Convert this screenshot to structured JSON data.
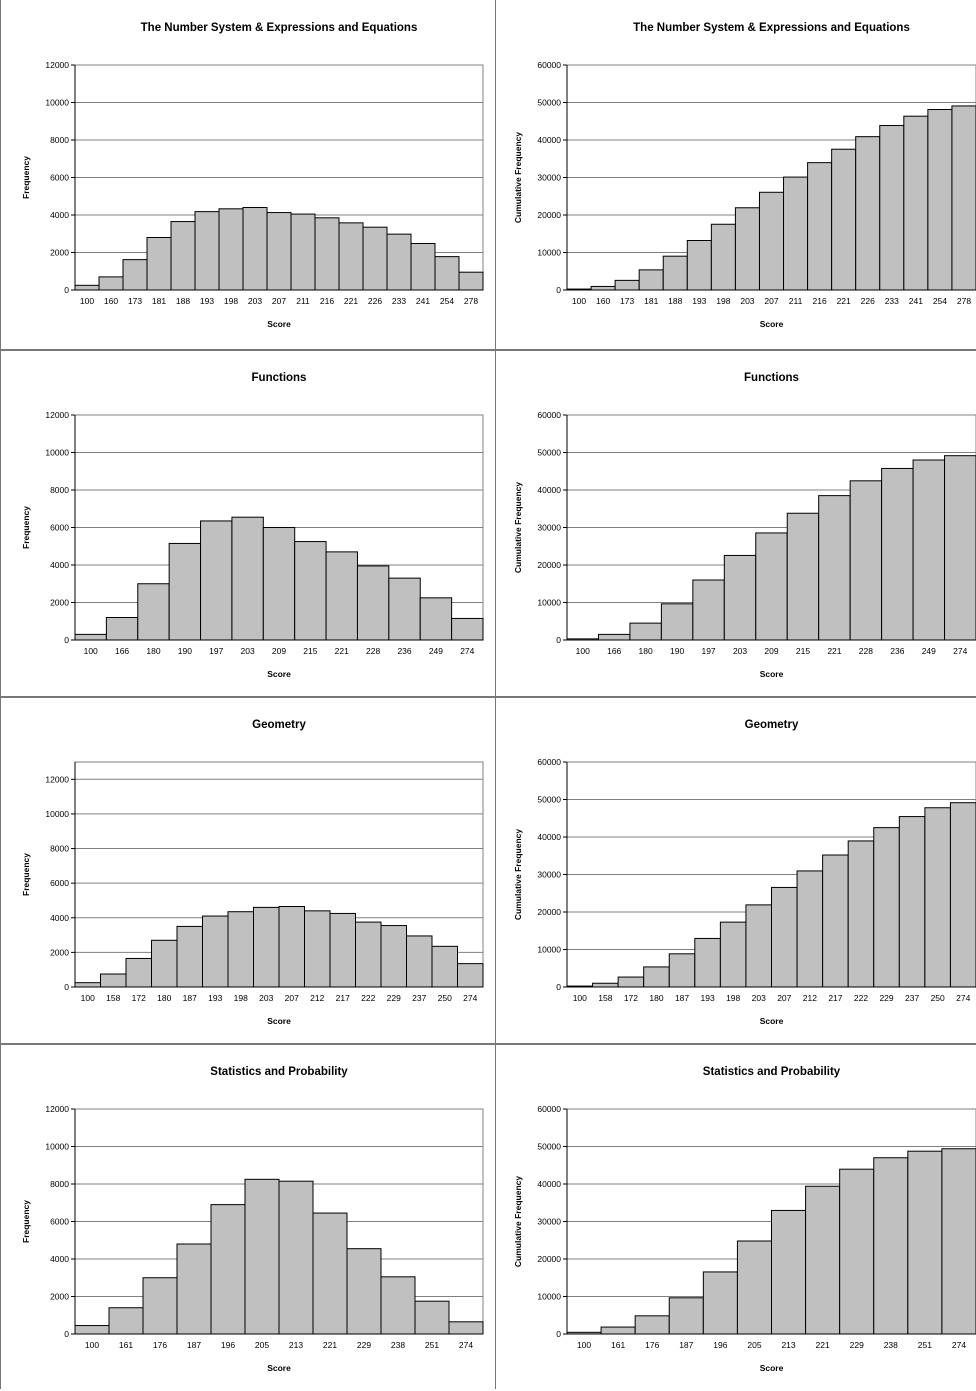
{
  "chart_data": [
    {
      "type": "bar",
      "title": "The Number System & Expressions and Equations",
      "xlabel": "Score",
      "ylabel": "Frequency",
      "ylim": [
        0,
        12000
      ],
      "yticks": [
        0,
        2000,
        4000,
        6000,
        8000,
        10000,
        12000
      ],
      "grid": true,
      "categories": [
        "100",
        "160",
        "173",
        "181",
        "188",
        "193",
        "198",
        "203",
        "207",
        "211",
        "216",
        "221",
        "226",
        "233",
        "241",
        "254",
        "278"
      ],
      "values": [
        250,
        700,
        1620,
        2800,
        3650,
        4180,
        4330,
        4400,
        4130,
        4050,
        3850,
        3580,
        3350,
        2980,
        2480,
        1780,
        950
      ]
    },
    {
      "type": "bar",
      "title": "The Number System & Expressions and Equations",
      "xlabel": "Score",
      "ylabel": "Cumulative Frequency",
      "ylim": [
        0,
        60000
      ],
      "yticks": [
        0,
        10000,
        20000,
        30000,
        40000,
        50000,
        60000
      ],
      "grid": true,
      "categories": [
        "100",
        "160",
        "173",
        "181",
        "188",
        "193",
        "198",
        "203",
        "207",
        "211",
        "216",
        "221",
        "226",
        "233",
        "241",
        "254",
        "278"
      ],
      "values": [
        250,
        950,
        2570,
        5370,
        9020,
        13200,
        17530,
        21930,
        26060,
        30110,
        33960,
        37540,
        40890,
        43870,
        46350,
        48130,
        49080
      ]
    },
    {
      "type": "bar",
      "title": "Functions",
      "xlabel": "Score",
      "ylabel": "Frequency",
      "ylim": [
        0,
        12000
      ],
      "yticks": [
        0,
        2000,
        4000,
        6000,
        8000,
        10000,
        12000
      ],
      "grid": true,
      "categories": [
        "100",
        "166",
        "180",
        "190",
        "197",
        "203",
        "209",
        "215",
        "221",
        "228",
        "236",
        "249",
        "274"
      ],
      "values": [
        300,
        1200,
        3000,
        5150,
        6350,
        6550,
        6000,
        5250,
        4700,
        3950,
        3300,
        2250,
        1150
      ]
    },
    {
      "type": "bar",
      "title": "Functions",
      "xlabel": "Score",
      "ylabel": "Cumulative Frequency",
      "ylim": [
        0,
        60000
      ],
      "yticks": [
        0,
        10000,
        20000,
        30000,
        40000,
        50000,
        60000
      ],
      "grid": true,
      "categories": [
        "100",
        "166",
        "180",
        "190",
        "197",
        "203",
        "209",
        "215",
        "221",
        "228",
        "236",
        "249",
        "274"
      ],
      "values": [
        300,
        1500,
        4500,
        9650,
        16000,
        22550,
        28550,
        33800,
        38500,
        42450,
        45750,
        48000,
        49150
      ]
    },
    {
      "type": "bar",
      "title": "Geometry",
      "xlabel": "Score",
      "ylabel": "Frequency",
      "ylim": [
        0,
        13000
      ],
      "yticks": [
        0,
        2000,
        4000,
        6000,
        8000,
        10000,
        12000
      ],
      "grid": true,
      "categories": [
        "100",
        "158",
        "172",
        "180",
        "187",
        "193",
        "198",
        "203",
        "207",
        "212",
        "217",
        "222",
        "229",
        "237",
        "250",
        "274"
      ],
      "values": [
        250,
        750,
        1650,
        2700,
        3500,
        4100,
        4350,
        4600,
        4650,
        4400,
        4250,
        3750,
        3550,
        2950,
        2350,
        1350
      ]
    },
    {
      "type": "bar",
      "title": "Geometry",
      "xlabel": "Score",
      "ylabel": "Cumulative Frequency",
      "ylim": [
        0,
        60000
      ],
      "yticks": [
        0,
        10000,
        20000,
        30000,
        40000,
        50000,
        60000
      ],
      "grid": true,
      "categories": [
        "100",
        "158",
        "172",
        "180",
        "187",
        "193",
        "198",
        "203",
        "207",
        "212",
        "217",
        "222",
        "229",
        "237",
        "250",
        "274"
      ],
      "values": [
        250,
        1000,
        2650,
        5350,
        8850,
        12950,
        17300,
        21900,
        26550,
        30950,
        35200,
        38950,
        42500,
        45450,
        47800,
        49150
      ]
    },
    {
      "type": "bar",
      "title": "Statistics and Probability",
      "xlabel": "Score",
      "ylabel": "Frequency",
      "ylim": [
        0,
        12000
      ],
      "yticks": [
        0,
        2000,
        4000,
        6000,
        8000,
        10000,
        12000
      ],
      "grid": true,
      "categories": [
        "100",
        "161",
        "176",
        "187",
        "196",
        "205",
        "213",
        "221",
        "229",
        "238",
        "251",
        "274"
      ],
      "values": [
        450,
        1400,
        3000,
        4800,
        6900,
        8250,
        8150,
        6450,
        4550,
        3050,
        1750,
        650
      ]
    },
    {
      "type": "bar",
      "title": "Statistics and Probability",
      "xlabel": "Score",
      "ylabel": "Cumulative Frequency",
      "ylim": [
        0,
        60000
      ],
      "yticks": [
        0,
        10000,
        20000,
        30000,
        40000,
        50000,
        60000
      ],
      "grid": true,
      "categories": [
        "100",
        "161",
        "176",
        "187",
        "196",
        "205",
        "213",
        "221",
        "229",
        "238",
        "251",
        "274"
      ],
      "values": [
        450,
        1850,
        4850,
        9650,
        16550,
        24800,
        32950,
        39400,
        43950,
        47000,
        48750,
        49400
      ]
    }
  ],
  "colors": {
    "bar": "#c0c0c0",
    "bar_stroke": "#000000",
    "gridline": "#808080",
    "text": "#000000",
    "divider": "#777777"
  }
}
